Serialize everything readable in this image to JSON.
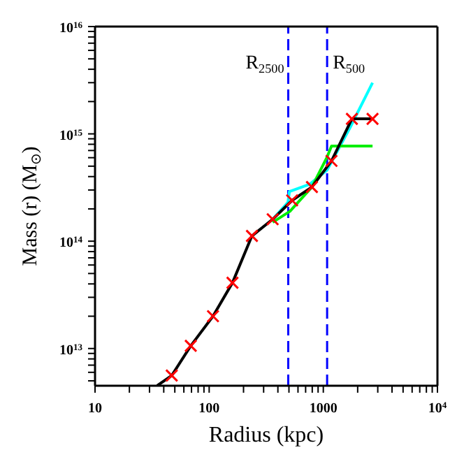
{
  "chart_data": {
    "type": "line",
    "xlabel": "Radius (kpc)",
    "ylabel": "Mass (r) (M$_{⊙}$)",
    "log": "xy",
    "grid": false,
    "xlim": [
      10,
      10000
    ],
    "ylim": [
      4500000000000.0,
      1e+16
    ],
    "xticks": [
      {
        "value": 10,
        "label": "10"
      },
      {
        "value": 20,
        "label": null
      },
      {
        "value": 30,
        "label": null
      },
      {
        "value": 40,
        "label": null
      },
      {
        "value": 50,
        "label": null
      },
      {
        "value": 60,
        "label": null
      },
      {
        "value": 70,
        "label": null
      },
      {
        "value": 80,
        "label": null
      },
      {
        "value": 90,
        "label": null
      },
      {
        "value": 100,
        "label": "100"
      },
      {
        "value": 200,
        "label": null
      },
      {
        "value": 300,
        "label": null
      },
      {
        "value": 400,
        "label": null
      },
      {
        "value": 500,
        "label": null
      },
      {
        "value": 600,
        "label": null
      },
      {
        "value": 700,
        "label": null
      },
      {
        "value": 800,
        "label": null
      },
      {
        "value": 900,
        "label": null
      },
      {
        "value": 1000,
        "label": "1000"
      },
      {
        "value": 2000,
        "label": null
      },
      {
        "value": 3000,
        "label": null
      },
      {
        "value": 4000,
        "label": null
      },
      {
        "value": 5000,
        "label": null
      },
      {
        "value": 6000,
        "label": null
      },
      {
        "value": 7000,
        "label": null
      },
      {
        "value": 8000,
        "label": null
      },
      {
        "value": 9000,
        "label": null
      },
      {
        "value": 10000,
        "label": "10$^{4}$"
      }
    ],
    "yticks": [
      {
        "value": 5000000000000.0,
        "label": null
      },
      {
        "value": 6000000000000.0,
        "label": null
      },
      {
        "value": 7000000000000.0,
        "label": null
      },
      {
        "value": 8000000000000.0,
        "label": null
      },
      {
        "value": 9000000000000.0,
        "label": null
      },
      {
        "value": 10000000000000.0,
        "label": "10$^{13}$"
      },
      {
        "value": 20000000000000.0,
        "label": null
      },
      {
        "value": 30000000000000.0,
        "label": null
      },
      {
        "value": 40000000000000.0,
        "label": null
      },
      {
        "value": 50000000000000.0,
        "label": null
      },
      {
        "value": 60000000000000.0,
        "label": null
      },
      {
        "value": 70000000000000.0,
        "label": null
      },
      {
        "value": 80000000000000.0,
        "label": null
      },
      {
        "value": 90000000000000.0,
        "label": null
      },
      {
        "value": 100000000000000.0,
        "label": "10$^{14}$"
      },
      {
        "value": 200000000000000.0,
        "label": null
      },
      {
        "value": 300000000000000.0,
        "label": null
      },
      {
        "value": 400000000000000.0,
        "label": null
      },
      {
        "value": 500000000000000.0,
        "label": null
      },
      {
        "value": 600000000000000.0,
        "label": null
      },
      {
        "value": 700000000000000.0,
        "label": null
      },
      {
        "value": 800000000000000.0,
        "label": null
      },
      {
        "value": 900000000000000.0,
        "label": null
      },
      {
        "value": 1000000000000000.0,
        "label": "10$^{15}$"
      },
      {
        "value": 2000000000000000.0,
        "label": null
      },
      {
        "value": 3000000000000000.0,
        "label": null
      },
      {
        "value": 4000000000000000.0,
        "label": null
      },
      {
        "value": 5000000000000000.0,
        "label": null
      },
      {
        "value": 6000000000000000.0,
        "label": null
      },
      {
        "value": 7000000000000000.0,
        "label": null
      },
      {
        "value": 8000000000000000.0,
        "label": null
      },
      {
        "value": 9000000000000000.0,
        "label": null
      },
      {
        "value": 1e+16,
        "label": "10$^{16}$"
      }
    ],
    "ref_lines": [
      {
        "axis": "x",
        "value": 493,
        "label": "R$_{2500}$",
        "color": "#0000ff",
        "line_style": "dashed"
      },
      {
        "axis": "x",
        "value": 1080,
        "label": "R$_{500}$",
        "color": "#0000ff",
        "line_style": "dashed"
      }
    ],
    "series": [
      {
        "color": "#00ffff",
        "x": [
          360,
          490,
          505,
          760,
          1080,
          1720,
          2700
        ],
        "values": [
          160000000000000.0,
          230000000000000.0,
          290000000000000.0,
          340000000000000.0,
          460000000000000.0,
          1150000000000000.0,
          3000000000000000.0
        ]
      },
      {
        "color": "#00ee00",
        "x": [
          360,
          510,
          795,
          1080,
          1180,
          2700
        ],
        "values": [
          150000000000000.0,
          190000000000000.0,
          320000000000000.0,
          610000000000000.0,
          770000000000000.0,
          770000000000000.0
        ]
      },
      {
        "color": "#000000",
        "x": [
          35,
          47,
          69,
          108,
          160,
          237,
          360,
          533,
          795,
          1180,
          1780,
          2700
        ],
        "values": [
          4500000000000.0,
          5600000000000.0,
          10600000000000.0,
          20000000000000.0,
          41000000000000.0,
          112000000000000.0,
          160000000000000.0,
          240000000000000.0,
          320000000000000.0,
          560000000000000.0,
          1380000000000000.0,
          1380000000000000.0
        ]
      },
      {
        "type": "scatter",
        "marker": "cross",
        "color": "#ff0000",
        "x": [
          47,
          69,
          108,
          160,
          237,
          360,
          533,
          795,
          1180,
          1780,
          2700
        ],
        "values": [
          5600000000000.0,
          10600000000000.0,
          20000000000000.0,
          41000000000000.0,
          112000000000000.0,
          160000000000000.0,
          240000000000000.0,
          320000000000000.0,
          560000000000000.0,
          1380000000000000.0,
          1380000000000000.0
        ]
      }
    ]
  }
}
